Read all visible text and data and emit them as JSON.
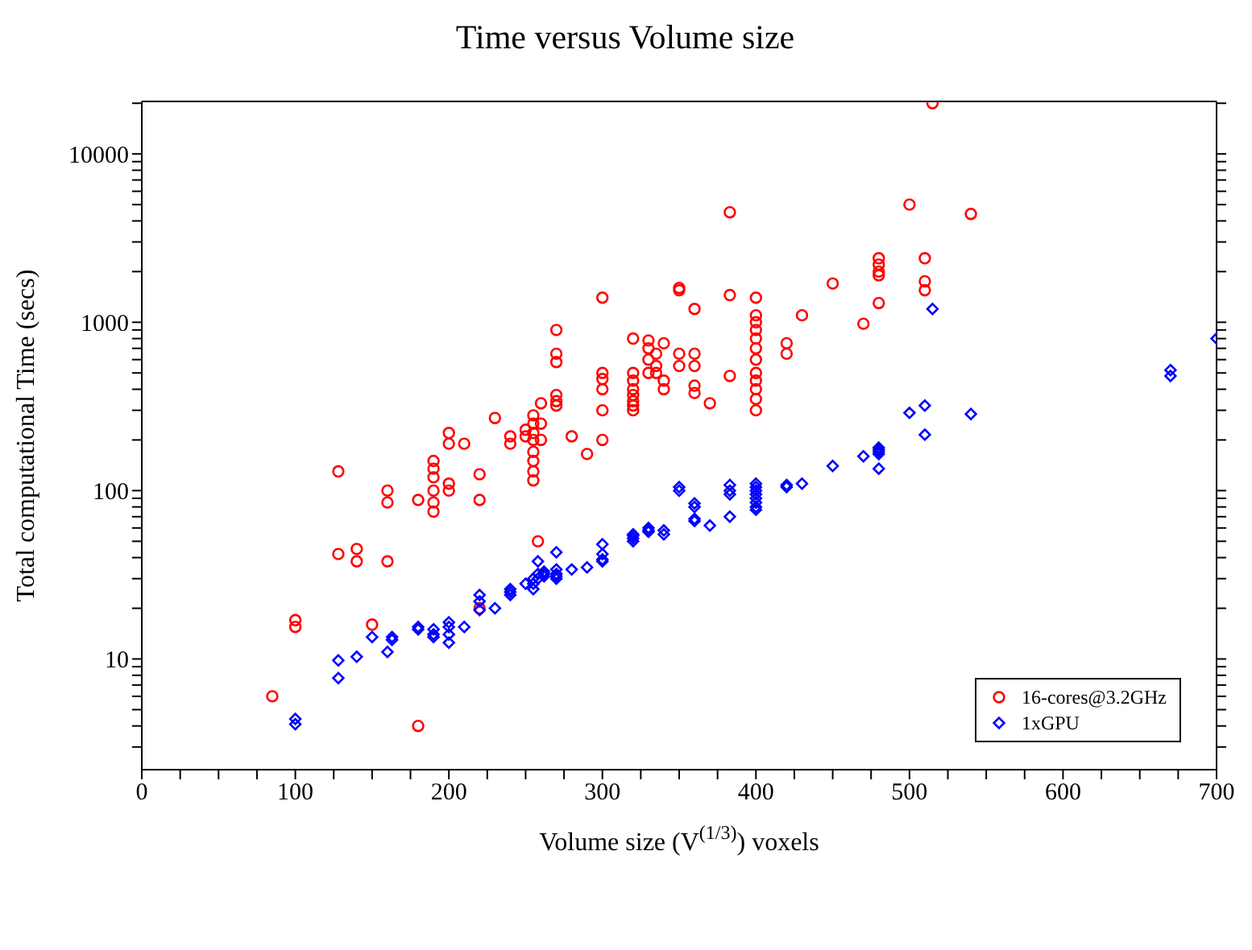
{
  "chart_data": {
    "type": "scatter",
    "title": "Time versus Volume size",
    "xlabel": "Volume size (V$^{(1/3)}$) voxels",
    "ylabel": "Total computational Time (secs)",
    "log": "y",
    "grid": false,
    "legend": "bottom right",
    "xlim": [
      0,
      700
    ],
    "xticks": [
      0,
      {
        "value": 25,
        "label": null
      },
      {
        "value": 50,
        "label": null
      },
      {
        "value": 75,
        "label": null
      },
      100,
      {
        "value": 125,
        "label": null
      },
      {
        "value": 150,
        "label": null
      },
      {
        "value": 175,
        "label": null
      },
      200,
      {
        "value": 225,
        "label": null
      },
      {
        "value": 250,
        "label": null
      },
      {
        "value": 275,
        "label": null
      },
      300,
      {
        "value": 325,
        "label": null
      },
      {
        "value": 350,
        "label": null
      },
      {
        "value": 375,
        "label": null
      },
      400,
      {
        "value": 425,
        "label": null
      },
      {
        "value": 450,
        "label": null
      },
      {
        "value": 475,
        "label": null
      },
      500,
      {
        "value": 525,
        "label": null
      },
      {
        "value": 550,
        "label": null
      },
      {
        "value": 575,
        "label": null
      },
      600,
      {
        "value": 625,
        "label": null
      },
      {
        "value": 650,
        "label": null
      },
      {
        "value": 675,
        "label": null
      },
      700
    ],
    "ylim": [
      2.2,
      20500
    ],
    "yticks": [
      {
        "value": 3,
        "label": null
      },
      {
        "value": 4,
        "label": null
      },
      {
        "value": 5,
        "label": null
      },
      {
        "value": 6,
        "label": null
      },
      {
        "value": 7,
        "label": null
      },
      {
        "value": 8,
        "label": null
      },
      {
        "value": 9,
        "label": null
      },
      10,
      {
        "value": 20,
        "label": null
      },
      {
        "value": 30,
        "label": null
      },
      {
        "value": 40,
        "label": null
      },
      {
        "value": 50,
        "label": null
      },
      {
        "value": 60,
        "label": null
      },
      {
        "value": 70,
        "label": null
      },
      {
        "value": 80,
        "label": null
      },
      {
        "value": 90,
        "label": null
      },
      100,
      {
        "value": 200,
        "label": null
      },
      {
        "value": 300,
        "label": null
      },
      {
        "value": 400,
        "label": null
      },
      {
        "value": 500,
        "label": null
      },
      {
        "value": 600,
        "label": null
      },
      {
        "value": 700,
        "label": null
      },
      {
        "value": 800,
        "label": null
      },
      {
        "value": 900,
        "label": null
      },
      1000,
      {
        "value": 2000,
        "label": null
      },
      {
        "value": 3000,
        "label": null
      },
      {
        "value": 4000,
        "label": null
      },
      {
        "value": 5000,
        "label": null
      },
      {
        "value": 6000,
        "label": null
      },
      {
        "value": 7000,
        "label": null
      },
      {
        "value": 8000,
        "label": null
      },
      {
        "value": 9000,
        "label": null
      },
      10000,
      {
        "value": 20000,
        "label": null
      }
    ],
    "series": [
      {
        "name": "16-cores@3.2GHz",
        "color": "#ff0000",
        "marker": "circle",
        "x": [
          85,
          100,
          100,
          128,
          128,
          140,
          140,
          150,
          160,
          160,
          160,
          180,
          180,
          190,
          190,
          190,
          190,
          190,
          190,
          200,
          200,
          200,
          200,
          210,
          220,
          220,
          220,
          230,
          240,
          240,
          250,
          250,
          255,
          255,
          255,
          255,
          255,
          255,
          255,
          255,
          258,
          260,
          260,
          260,
          270,
          270,
          270,
          270,
          270,
          270,
          280,
          290,
          300,
          300,
          300,
          300,
          300,
          300,
          320,
          320,
          320,
          320,
          320,
          320,
          320,
          320,
          330,
          330,
          330,
          330,
          335,
          335,
          335,
          340,
          340,
          340,
          350,
          350,
          350,
          350,
          360,
          360,
          360,
          360,
          360,
          370,
          383,
          383,
          383,
          400,
          400,
          400,
          400,
          400,
          400,
          400,
          400,
          400,
          400,
          400,
          400,
          420,
          420,
          430,
          450,
          470,
          480,
          480,
          480,
          480,
          480,
          500,
          510,
          510,
          510,
          515,
          540
        ],
        "values": [
          6,
          17,
          15.5,
          130,
          42,
          45,
          38,
          16,
          38,
          100,
          85,
          88,
          4,
          150,
          135,
          120,
          100,
          85,
          75,
          220,
          190,
          110,
          100,
          190,
          125,
          88,
          20,
          270,
          210,
          190,
          230,
          210,
          280,
          250,
          220,
          200,
          170,
          150,
          130,
          115,
          50,
          330,
          250,
          200,
          900,
          650,
          580,
          370,
          340,
          320,
          210,
          165,
          1400,
          500,
          460,
          400,
          300,
          200,
          800,
          500,
          450,
          400,
          370,
          340,
          320,
          300,
          780,
          700,
          600,
          500,
          650,
          550,
          500,
          750,
          450,
          400,
          1600,
          1550,
          650,
          550,
          1200,
          650,
          550,
          420,
          380,
          330,
          4500,
          1450,
          480,
          1400,
          1100,
          1000,
          900,
          800,
          700,
          600,
          500,
          450,
          400,
          350,
          300,
          750,
          650,
          1100,
          1700,
          980,
          2400,
          2200,
          2000,
          1900,
          1300,
          5000,
          2400,
          1750,
          1550,
          20000,
          4400
        ]
      },
      {
        "name": "1xGPU",
        "color": "#0000ff",
        "marker": "diamond",
        "x": [
          100,
          100,
          128,
          128,
          140,
          150,
          160,
          163,
          163,
          180,
          180,
          190,
          190,
          190,
          200,
          200,
          200,
          200,
          210,
          220,
          220,
          220,
          230,
          240,
          240,
          240,
          250,
          255,
          255,
          255,
          258,
          258,
          258,
          262,
          262,
          262,
          270,
          270,
          270,
          270,
          270,
          280,
          290,
          300,
          300,
          300,
          300,
          320,
          320,
          320,
          320,
          330,
          330,
          330,
          340,
          340,
          350,
          350,
          360,
          360,
          360,
          360,
          370,
          383,
          383,
          383,
          383,
          400,
          400,
          400,
          400,
          400,
          400,
          400,
          400,
          420,
          420,
          430,
          450,
          470,
          480,
          480,
          480,
          480,
          480,
          500,
          510,
          510,
          515,
          540,
          670,
          670,
          700
        ],
        "values": [
          4.4,
          4.1,
          9.8,
          7.7,
          10.3,
          13.5,
          11,
          13.5,
          13,
          15.5,
          15,
          15,
          14,
          13.5,
          16.5,
          15.5,
          14,
          12.5,
          15.5,
          24,
          22,
          19.5,
          20,
          26,
          25,
          24,
          28,
          30,
          28,
          26,
          38,
          32,
          30,
          33,
          32,
          31,
          43,
          34,
          32,
          31,
          30,
          34,
          35,
          48,
          42,
          39,
          38,
          55,
          54,
          52,
          50,
          60,
          58,
          57,
          58,
          55,
          105,
          100,
          84,
          80,
          68,
          66,
          62,
          108,
          100,
          95,
          70,
          110,
          105,
          100,
          95,
          90,
          85,
          80,
          77,
          108,
          105,
          110,
          140,
          160,
          180,
          175,
          170,
          165,
          135,
          290,
          215,
          320,
          1200,
          285,
          520,
          480,
          800
        ]
      }
    ]
  }
}
